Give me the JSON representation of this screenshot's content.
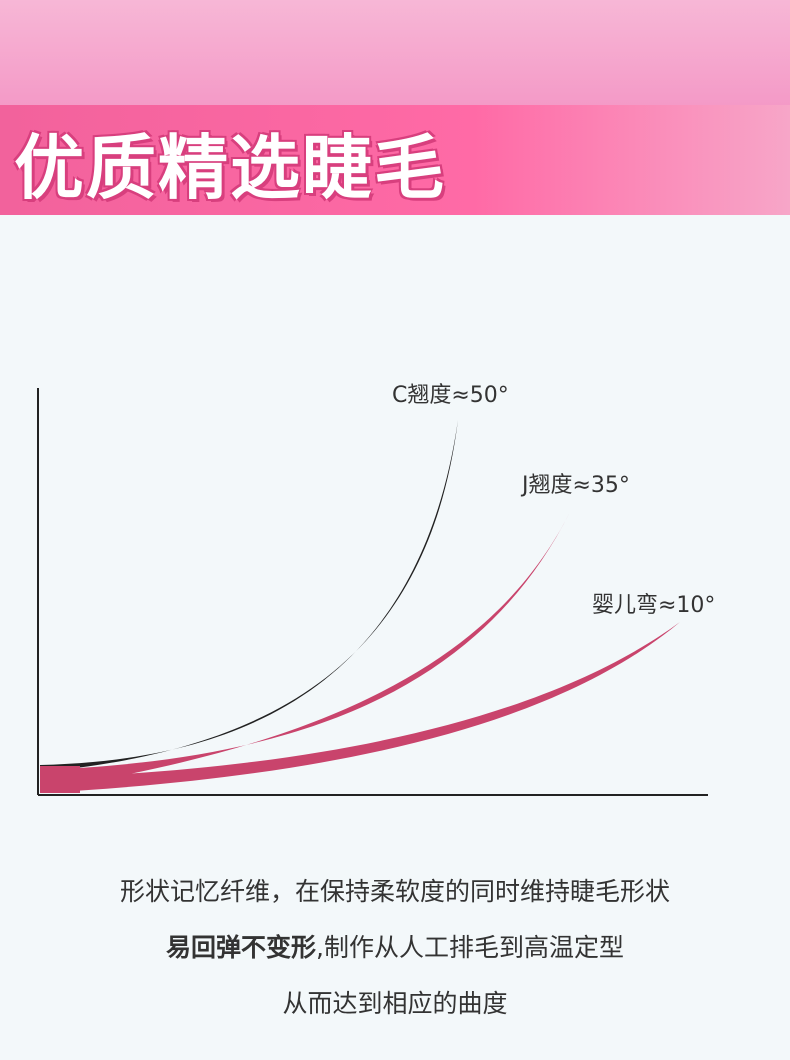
{
  "header": {
    "title": "优质精选睫毛"
  },
  "diagram": {
    "curves": [
      {
        "label": "C翘度≈50°"
      },
      {
        "label": "J翘度≈35°"
      },
      {
        "label": "婴儿弯≈10°"
      }
    ]
  },
  "description": {
    "line1": "形状记忆纤维，在保持柔软度的同时维持睫毛形状",
    "line2": {
      "bold": "易回弹不变形",
      "text": ",制作从人工排毛到高温定型"
    },
    "line3": "从而达到相应的曲度"
  }
}
